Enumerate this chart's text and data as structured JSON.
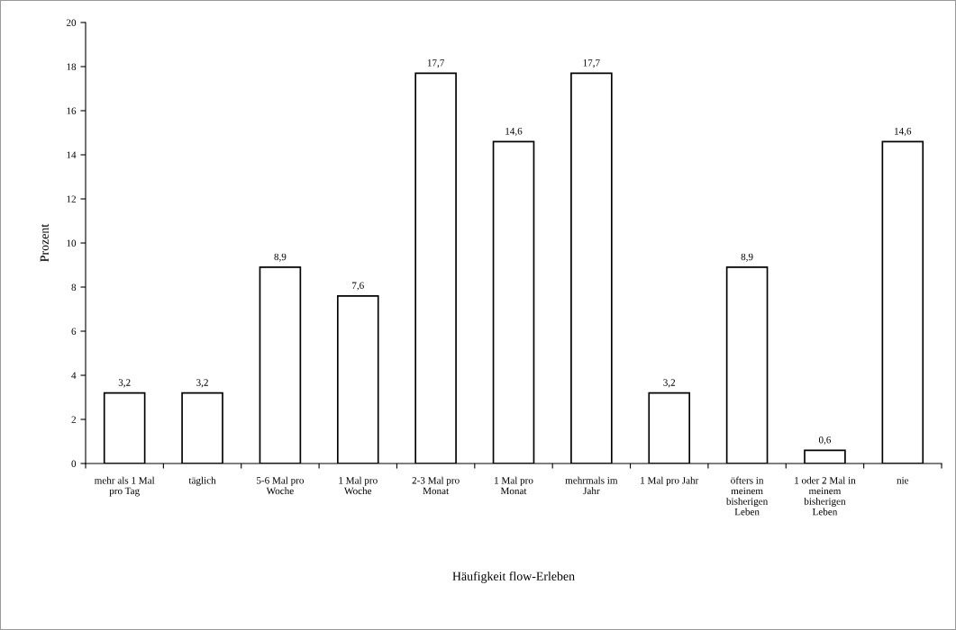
{
  "chart_data": {
    "type": "bar",
    "xlabel": "Häufigkeit flow-Erleben",
    "ylabel": "Prozent",
    "categories": [
      "mehr als 1 Mal pro Tag",
      "täglich",
      "5-6 Mal pro Woche",
      "1 Mal pro Woche",
      "2-3 Mal pro Monat",
      "1 Mal pro Monat",
      "mehrmals im Jahr",
      "1 Mal pro Jahr",
      "öfters in meinem bisherigen Leben",
      "1 oder 2 Mal in meinem bisherigen Leben",
      "nie"
    ],
    "values": [
      3.2,
      3.2,
      8.9,
      7.6,
      17.7,
      14.6,
      17.7,
      3.2,
      8.9,
      0.6,
      14.6
    ],
    "value_labels": [
      "3,2",
      "3,2",
      "8,9",
      "7,6",
      "17,7",
      "14,6",
      "17,7",
      "3,2",
      "8,9",
      "0,6",
      "14,6"
    ],
    "color": "#ffffff",
    "ylim": [
      0,
      20
    ],
    "yticks": [
      0,
      2,
      4,
      6,
      8,
      10,
      12,
      14,
      16,
      18,
      20
    ],
    "grid": false,
    "legend": false
  }
}
